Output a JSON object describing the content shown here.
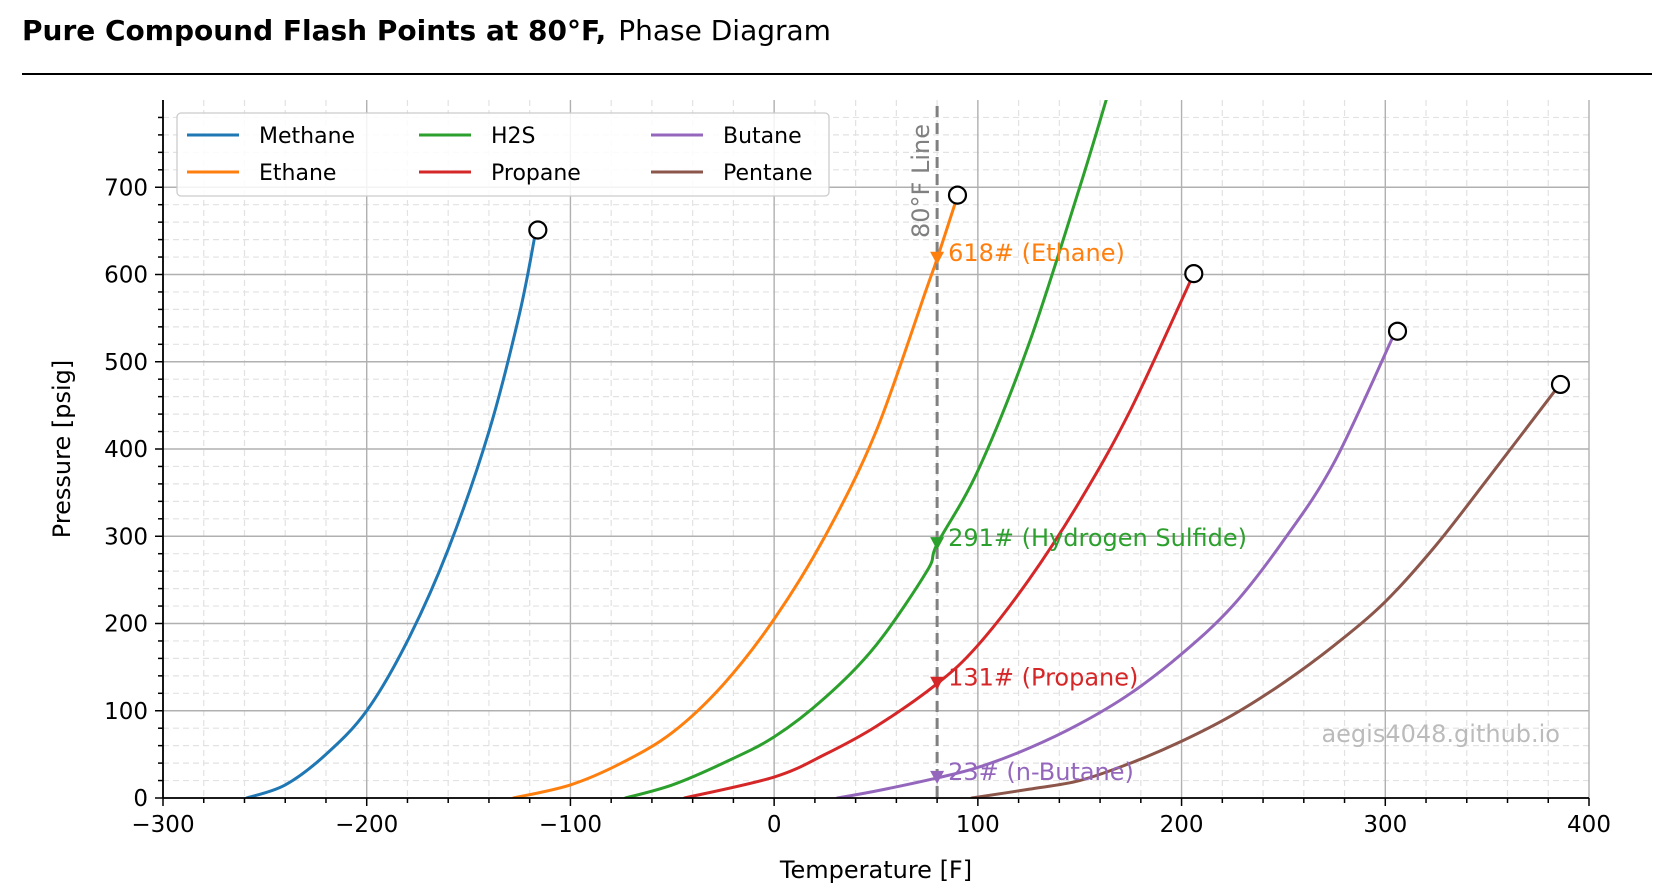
{
  "header": {
    "title": "Pure Compound Flash Points at 80°F,",
    "subtitle": "Phase Diagram"
  },
  "watermark": "aegis4048.github.io",
  "chart_data": {
    "type": "line",
    "xlabel": "Temperature [F]",
    "ylabel": "Pressure [psig]",
    "xlim": [
      -300,
      400
    ],
    "ylim": [
      0,
      800
    ],
    "xticks": [
      -300,
      -200,
      -100,
      0,
      100,
      200,
      300,
      400
    ],
    "xtick_labels": [
      "−300",
      "−200",
      "−100",
      "0",
      "100",
      "200",
      "300",
      "400"
    ],
    "yticks": [
      0,
      100,
      200,
      300,
      400,
      500,
      600,
      700
    ],
    "ytick_labels": [
      "0",
      "100",
      "200",
      "300",
      "400",
      "500",
      "600",
      "700"
    ],
    "grid": true,
    "minor_grid": true,
    "legend_placement": "top-left",
    "legend_columns": 3,
    "series": [
      {
        "name": "Methane",
        "color": "#1f77b4",
        "x": [
          -259,
          -240,
          -220,
          -200,
          -180,
          -160,
          -140,
          -125,
          -117
        ],
        "y": [
          0,
          15,
          50,
          100,
          180,
          285,
          420,
          555,
          650
        ]
      },
      {
        "name": "Ethane",
        "color": "#ff7f0e",
        "x": [
          -128,
          -100,
          -75,
          -50,
          -25,
          0,
          25,
          50,
          75,
          80,
          90
        ],
        "y": [
          0,
          15,
          40,
          75,
          130,
          205,
          300,
          420,
          585,
          618,
          690
        ]
      },
      {
        "name": "H2S",
        "color": "#2ca02c",
        "x": [
          -73,
          -50,
          -25,
          0,
          25,
          50,
          75,
          80,
          100,
          125,
          150,
          163
        ],
        "y": [
          0,
          15,
          40,
          70,
          115,
          175,
          260,
          291,
          375,
          520,
          700,
          800
        ]
      },
      {
        "name": "Propane",
        "color": "#d62728",
        "x": [
          -44,
          0,
          25,
          50,
          80,
          100,
          125,
          150,
          175,
          206
        ],
        "y": [
          0,
          24,
          50,
          82,
          131,
          175,
          250,
          340,
          445,
          601
        ]
      },
      {
        "name": "Butane",
        "color": "#9467bd",
        "x": [
          31,
          50,
          80,
          100,
          125,
          150,
          175,
          200,
          225,
          250,
          275,
          305
        ],
        "y": [
          0,
          8,
          23,
          35,
          57,
          85,
          120,
          165,
          220,
          295,
          385,
          535
        ]
      },
      {
        "name": "Pentane",
        "color": "#8c564b",
        "x": [
          97,
          125,
          150,
          175,
          200,
          225,
          250,
          275,
          300,
          325,
          350,
          385
        ],
        "y": [
          0,
          10,
          20,
          40,
          65,
          95,
          132,
          175,
          225,
          290,
          365,
          472
        ]
      }
    ],
    "critical_points": [
      {
        "name": "Methane",
        "x": -116,
        "y": 651
      },
      {
        "name": "Ethane",
        "x": 90,
        "y": 691
      },
      {
        "name": "Propane",
        "x": 206,
        "y": 601
      },
      {
        "name": "Butane",
        "x": 306,
        "y": 535
      },
      {
        "name": "Pentane",
        "x": 386,
        "y": 474
      }
    ],
    "vertical_line": {
      "x": 80,
      "label": "80°F Line",
      "color": "#808080"
    },
    "flash_points": [
      {
        "x": 80,
        "y": 618,
        "label": "618# (Ethane)",
        "color": "#ff7f0e"
      },
      {
        "x": 80,
        "y": 291,
        "label": "291# (Hydrogen Sulfide)",
        "color": "#2ca02c"
      },
      {
        "x": 80,
        "y": 131,
        "label": "131# (Propane)",
        "color": "#d62728"
      },
      {
        "x": 80,
        "y": 23,
        "label": "23# (n-Butane)",
        "color": "#9467bd"
      }
    ]
  }
}
